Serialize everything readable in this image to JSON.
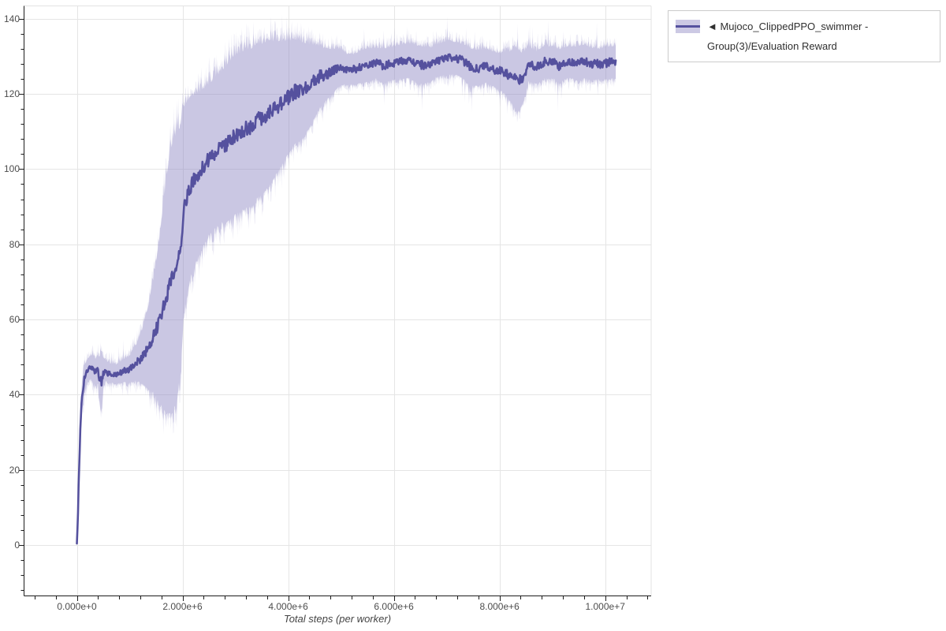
{
  "chart_data": {
    "type": "line",
    "title": "",
    "xlabel": "Total steps (per worker)",
    "ylabel": "",
    "xlim": [
      -1000000,
      10870000
    ],
    "ylim": [
      -13.4,
      143.4
    ],
    "grid": true,
    "legend_position": "outside-top-right",
    "legend_label": "◄ Mujoco_ClippedPPO_swimmer - Group(3)/Evaluation Reward",
    "x_major_ticks": [
      {
        "value": 0,
        "label": "0.000e+0"
      },
      {
        "value": 2000000,
        "label": "2.000e+6"
      },
      {
        "value": 4000000,
        "label": "4.000e+6"
      },
      {
        "value": 6000000,
        "label": "6.000e+6"
      },
      {
        "value": 8000000,
        "label": "8.000e+6"
      },
      {
        "value": 10000000,
        "label": "1.000e+7"
      }
    ],
    "x_minor_step": 400000,
    "y_major_ticks": [
      {
        "value": 0,
        "label": "0"
      },
      {
        "value": 20,
        "label": "20"
      },
      {
        "value": 40,
        "label": "40"
      },
      {
        "value": 60,
        "label": "60"
      },
      {
        "value": 80,
        "label": "80"
      },
      {
        "value": 100,
        "label": "100"
      },
      {
        "value": 120,
        "label": "120"
      },
      {
        "value": 140,
        "label": "140"
      }
    ],
    "y_minor_step": 4,
    "colors": {
      "line": "#55519e",
      "band": "#8d87c4",
      "grid": "#e5e5e5",
      "outline": "#e3e3e3",
      "axis": "#1c1c1c",
      "tick_label": "#4d4d4d",
      "axis_label": "#444444",
      "legend_border": "#cbcbcb",
      "legend_text": "#303030",
      "background": "#ffffff"
    },
    "series": [
      {
        "name": "Mujoco_ClippedPPO_swimmer - Group(3)/Evaluation Reward",
        "x": [
          0,
          20000,
          40000,
          70000,
          100000,
          140000,
          200000,
          260000,
          310000,
          350000,
          400000,
          430000,
          460000,
          500000,
          550000,
          650000,
          750000,
          850000,
          950000,
          1050000,
          1150000,
          1250000,
          1350000,
          1450000,
          1550000,
          1650000,
          1750000,
          1820000,
          1900000,
          1970000,
          2030000,
          2100000,
          2200000,
          2350000,
          2500000,
          2700000,
          2900000,
          3100000,
          3300000,
          3500000,
          3700000,
          3900000,
          4100000,
          4300000,
          4500000,
          4700000,
          4900000,
          5050000,
          5200000,
          5350000,
          5500000,
          5650000,
          5800000,
          5950000,
          6100000,
          6250000,
          6400000,
          6550000,
          6700000,
          6850000,
          7000000,
          7150000,
          7300000,
          7450000,
          7600000,
          7750000,
          7900000,
          8050000,
          8200000,
          8330000,
          8450000,
          8550000,
          8700000,
          8850000,
          9000000,
          9150000,
          9300000,
          9450000,
          9600000,
          9750000,
          9900000,
          10000000,
          10200000
        ],
        "mean": [
          0.3,
          8,
          20,
          33,
          40,
          44,
          46.5,
          47.5,
          47.2,
          46,
          46.8,
          44.2,
          43.8,
          45.8,
          46.5,
          45.9,
          45.6,
          46,
          46.6,
          47.5,
          49,
          50.5,
          52.5,
          55.5,
          59.5,
          64.5,
          69,
          71.5,
          74.5,
          80,
          90,
          93.5,
          96.5,
          99.5,
          102.5,
          105.5,
          108,
          110,
          111.5,
          113.5,
          115.5,
          118,
          120.5,
          121,
          123,
          125.5,
          126.5,
          127,
          126.3,
          127.2,
          127.6,
          128.1,
          127.4,
          127.9,
          128.6,
          129.2,
          128.2,
          127.4,
          128.2,
          129.3,
          129.6,
          129.2,
          128.6,
          127.2,
          127,
          127.6,
          126.2,
          125.6,
          124.8,
          123.5,
          124.5,
          128.2,
          127,
          128.4,
          128.2,
          127.6,
          128.6,
          128,
          128.5,
          128.2,
          127.8,
          128.4,
          128.2
        ],
        "std": [
          0.5,
          2,
          3,
          4,
          4,
          3.5,
          3,
          3,
          3.2,
          3.6,
          3.4,
          6,
          8.5,
          4,
          2.6,
          2.5,
          2.6,
          2.8,
          3.2,
          3.8,
          5,
          7.5,
          11,
          15,
          21,
          28,
          34,
          36,
          35,
          32,
          27,
          25,
          23,
          21,
          20,
          20,
          21,
          21,
          21,
          20,
          18.5,
          16,
          14,
          12.5,
          9.5,
          7,
          5.5,
          4.2,
          4,
          4.2,
          4.4,
          4,
          4.6,
          4.3,
          4.4,
          4.6,
          4.8,
          5,
          4.4,
          4.3,
          4.4,
          4.3,
          4.5,
          5,
          4.6,
          4.4,
          4.6,
          5,
          6.5,
          8.5,
          6.5,
          4.6,
          4.2,
          4.4,
          4.2,
          4.4,
          4,
          4.4,
          4.4,
          4.2,
          4,
          4.2,
          4.2
        ]
      }
    ]
  }
}
